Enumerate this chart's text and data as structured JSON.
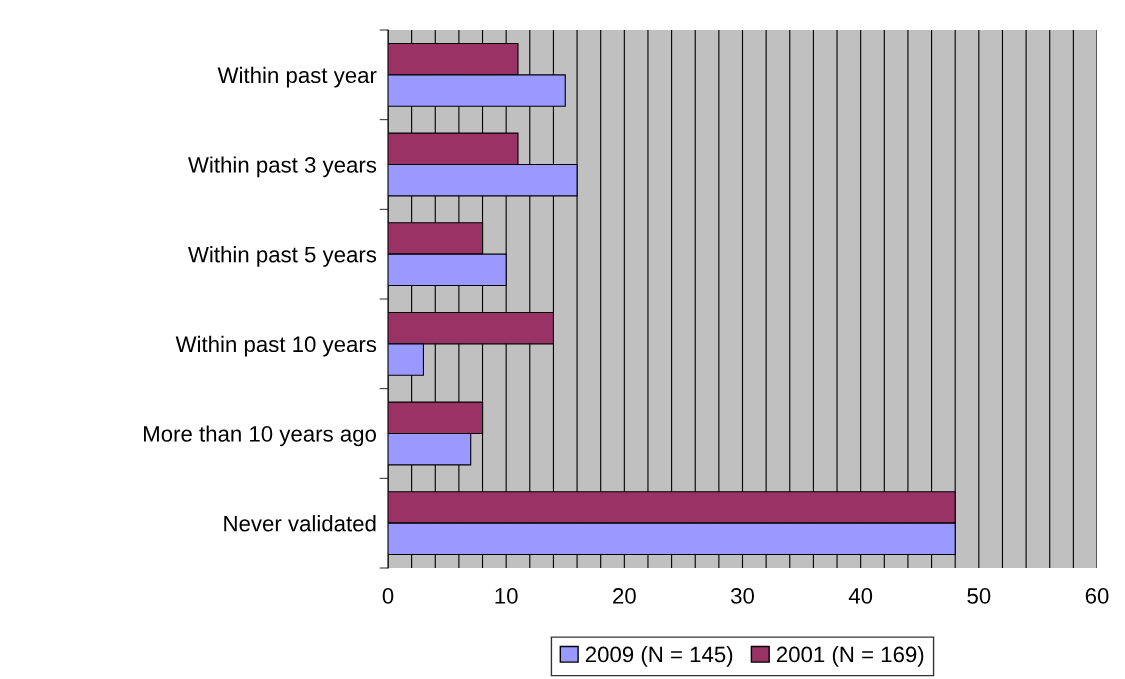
{
  "chart_data": {
    "type": "bar",
    "orientation": "horizontal",
    "categories": [
      "Within past year",
      "Within past 3 years",
      "Within past 5 years",
      "Within past 10 years",
      "More than 10 years ago",
      "Never validated"
    ],
    "series": [
      {
        "name": "2001 (N = 169)",
        "color": "#993366",
        "values": [
          11,
          11,
          8,
          14,
          8,
          48
        ]
      },
      {
        "name": "2009 (N = 145)",
        "color": "#9999ff",
        "values": [
          15,
          16,
          10,
          3,
          7,
          48
        ]
      }
    ],
    "xlim": [
      0,
      60
    ],
    "xticks": [
      0,
      {
        "value": 2,
        "label": null
      },
      {
        "value": 4,
        "label": null
      },
      {
        "value": 6,
        "label": null
      },
      {
        "value": 8,
        "label": null
      },
      10,
      {
        "value": 12,
        "label": null
      },
      {
        "value": 14,
        "label": null
      },
      {
        "value": 16,
        "label": null
      },
      {
        "value": 18,
        "label": null
      },
      20,
      {
        "value": 22,
        "label": null
      },
      {
        "value": 24,
        "label": null
      },
      {
        "value": 26,
        "label": null
      },
      {
        "value": 28,
        "label": null
      },
      30,
      {
        "value": 32,
        "label": null
      },
      {
        "value": 34,
        "label": null
      },
      {
        "value": 36,
        "label": null
      },
      {
        "value": 38,
        "label": null
      },
      40,
      {
        "value": 42,
        "label": null
      },
      {
        "value": 44,
        "label": null
      },
      {
        "value": 46,
        "label": null
      },
      {
        "value": 48,
        "label": null
      },
      50,
      {
        "value": 52,
        "label": null
      },
      {
        "value": 54,
        "label": null
      },
      {
        "value": 56,
        "label": null
      },
      {
        "value": 58,
        "label": null
      },
      60
    ],
    "grid": "x",
    "legend": "bottom"
  }
}
